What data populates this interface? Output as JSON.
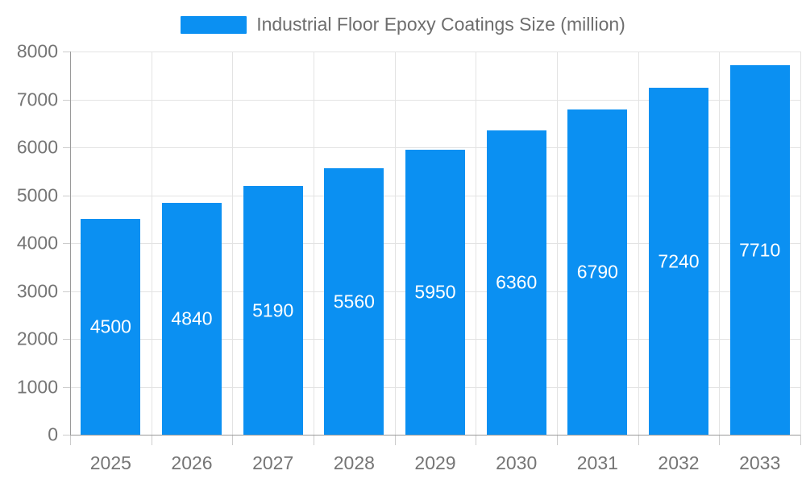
{
  "legend": {
    "label": "Industrial Floor Epoxy Coatings Size (million)"
  },
  "chart_data": {
    "type": "bar",
    "title": "Industrial Floor Epoxy Coatings Size (million)",
    "series_name": "Industrial Floor Epoxy Coatings Size (million)",
    "categories": [
      "2025",
      "2026",
      "2027",
      "2028",
      "2029",
      "2030",
      "2031",
      "2032",
      "2033"
    ],
    "values": [
      4500,
      4840,
      5190,
      5560,
      5950,
      6360,
      6790,
      7240,
      7710
    ],
    "bar_labels": [
      "4500",
      "4840",
      "5190",
      "5560",
      "5950",
      "6360",
      "6790",
      "7240",
      "7710"
    ],
    "xlabel": "",
    "ylabel": "",
    "ylim": [
      0,
      8000
    ],
    "ytick_step": 1000,
    "ytick_labels": [
      "0",
      "1000",
      "2000",
      "3000",
      "4000",
      "5000",
      "6000",
      "7000",
      "8000"
    ],
    "grid": true,
    "legend_position": "top",
    "colors": {
      "bar": "#0b90f2",
      "bar_label": "#ffffff",
      "axis_text": "#757575",
      "legend_text": "#6e6e6e",
      "gridline": "#e3e3e3",
      "axis_line": "#9a9a9a",
      "tick": "#cccccc",
      "background": "#ffffff"
    }
  }
}
